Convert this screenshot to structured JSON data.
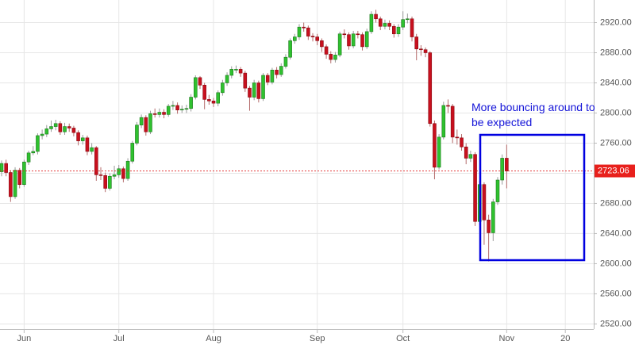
{
  "chart_data": {
    "type": "candlestick",
    "annotation": "More bouncing around to be expected",
    "up_color": "#2fc12f",
    "down_color": "#c8101e",
    "ylim": [
      2492,
      2950
    ],
    "yticks": [
      {
        "value": 2520,
        "label": "2520.00"
      },
      {
        "value": 2560,
        "label": "2560.00"
      },
      {
        "value": 2600,
        "label": "2600.00"
      },
      {
        "value": 2640,
        "label": "2640.00"
      },
      {
        "value": 2680,
        "label": "2680.00"
      },
      {
        "value": 2720,
        "label": "2720.00"
      },
      {
        "value": 2760,
        "label": "2760.00"
      },
      {
        "value": 2800,
        "label": "2800.00"
      },
      {
        "value": 2840,
        "label": "2840.00"
      },
      {
        "value": 2880,
        "label": "2880.00"
      },
      {
        "value": 2920,
        "label": "2920.00"
      }
    ],
    "xlim": [
      -0.35,
      131.3
    ],
    "xticks": [
      {
        "value": 5,
        "label": "Jun"
      },
      {
        "value": 26,
        "label": "Jul"
      },
      {
        "value": 47,
        "label": "Aug"
      },
      {
        "value": 70,
        "label": "Sep"
      },
      {
        "value": 89,
        "label": "Oct"
      },
      {
        "value": 112,
        "label": "Nov"
      },
      {
        "value": 125,
        "label": "20"
      }
    ],
    "grid": true,
    "last_price": 2723.06,
    "open": [
      2722,
      2733,
      2721,
      2689,
      2724,
      2705,
      2735,
      2747,
      2749,
      2770,
      2772,
      2779,
      2782,
      2786,
      2775,
      2782,
      2780,
      2774,
      2763,
      2767,
      2749,
      2754,
      2718,
      2717,
      2700,
      2716,
      2718,
      2726,
      2713,
      2736,
      2760,
      2784,
      2794,
      2775,
      2799,
      2798,
      2801,
      2798,
      2809,
      2810,
      2804,
      2805,
      2806,
      2821,
      2847,
      2837,
      2818,
      2816,
      2813,
      2827,
      2840,
      2850,
      2858,
      2858,
      2853,
      2833,
      2821,
      2840,
      2819,
      2850,
      2841,
      2857,
      2851,
      2862,
      2874,
      2896,
      2901,
      2914,
      2913,
      2902,
      2901,
      2896,
      2888,
      2878,
      2871,
      2877,
      2905,
      2904,
      2889,
      2905,
      2904,
      2888,
      2908,
      2931,
      2925,
      2915,
      2919,
      2915,
      2905,
      2914,
      2924,
      2925,
      2901,
      2885,
      2884,
      2880,
      2786,
      2728,
      2768,
      2810,
      2809,
      2768,
      2767,
      2755,
      2740,
      2745,
      2656,
      2705,
      2658,
      2641,
      2682,
      2711,
      2740
    ],
    "high": [
      2737,
      2738,
      2724,
      2728,
      2727,
      2738,
      2750,
      2756,
      2773,
      2778,
      2784,
      2790,
      2791,
      2789,
      2787,
      2786,
      2783,
      2777,
      2771,
      2770,
      2760,
      2756,
      2728,
      2721,
      2720,
      2730,
      2731,
      2729,
      2740,
      2763,
      2788,
      2798,
      2797,
      2803,
      2806,
      2806,
      2805,
      2812,
      2816,
      2814,
      2810,
      2811,
      2825,
      2850,
      2849,
      2840,
      2824,
      2820,
      2830,
      2844,
      2854,
      2862,
      2863,
      2861,
      2856,
      2836,
      2844,
      2843,
      2853,
      2853,
      2860,
      2861,
      2866,
      2878,
      2899,
      2905,
      2918,
      2920,
      2916,
      2906,
      2905,
      2899,
      2891,
      2882,
      2881,
      2908,
      2911,
      2907,
      2909,
      2909,
      2907,
      2912,
      2935,
      2937,
      2928,
      2924,
      2923,
      2918,
      2918,
      2935,
      2932,
      2928,
      2905,
      2890,
      2887,
      2882,
      2790,
      2772,
      2815,
      2818,
      2812,
      2778,
      2772,
      2760,
      2750,
      2748,
      2710,
      2708,
      2665,
      2686,
      2715,
      2745,
      2758
    ],
    "low": [
      2716,
      2716,
      2682,
      2686,
      2700,
      2702,
      2731,
      2744,
      2745,
      2765,
      2768,
      2775,
      2777,
      2771,
      2771,
      2775,
      2769,
      2757,
      2758,
      2744,
      2745,
      2710,
      2711,
      2695,
      2697,
      2712,
      2714,
      2708,
      2710,
      2733,
      2757,
      2780,
      2770,
      2772,
      2794,
      2794,
      2793,
      2795,
      2804,
      2799,
      2800,
      2800,
      2802,
      2818,
      2832,
      2805,
      2811,
      2808,
      2809,
      2823,
      2836,
      2846,
      2853,
      2848,
      2828,
      2803,
      2817,
      2814,
      2816,
      2837,
      2838,
      2846,
      2848,
      2859,
      2871,
      2892,
      2897,
      2908,
      2897,
      2895,
      2890,
      2881,
      2872,
      2866,
      2867,
      2874,
      2899,
      2884,
      2886,
      2899,
      2883,
      2885,
      2905,
      2920,
      2910,
      2911,
      2910,
      2900,
      2901,
      2910,
      2919,
      2895,
      2870,
      2876,
      2874,
      2782,
      2712,
      2725,
      2765,
      2800,
      2760,
      2758,
      2750,
      2732,
      2735,
      2650,
      2651,
      2625,
      2603,
      2630,
      2678,
      2705,
      2700
    ],
    "close": [
      2733,
      2721,
      2689,
      2724,
      2705,
      2735,
      2747,
      2749,
      2770,
      2772,
      2779,
      2782,
      2786,
      2775,
      2782,
      2780,
      2774,
      2763,
      2767,
      2749,
      2754,
      2718,
      2717,
      2700,
      2716,
      2718,
      2726,
      2713,
      2736,
      2760,
      2784,
      2794,
      2775,
      2799,
      2798,
      2801,
      2798,
      2809,
      2810,
      2804,
      2805,
      2806,
      2821,
      2847,
      2837,
      2818,
      2816,
      2813,
      2827,
      2840,
      2850,
      2858,
      2858,
      2853,
      2833,
      2821,
      2840,
      2819,
      2850,
      2841,
      2857,
      2851,
      2862,
      2874,
      2896,
      2901,
      2914,
      2913,
      2902,
      2901,
      2896,
      2888,
      2878,
      2871,
      2877,
      2905,
      2904,
      2889,
      2905,
      2904,
      2888,
      2908,
      2931,
      2925,
      2915,
      2919,
      2915,
      2905,
      2914,
      2924,
      2925,
      2901,
      2885,
      2884,
      2880,
      2786,
      2728,
      2768,
      2810,
      2809,
      2768,
      2767,
      2755,
      2740,
      2745,
      2656,
      2705,
      2658,
      2641,
      2682,
      2711,
      2740,
      2723
    ]
  }
}
